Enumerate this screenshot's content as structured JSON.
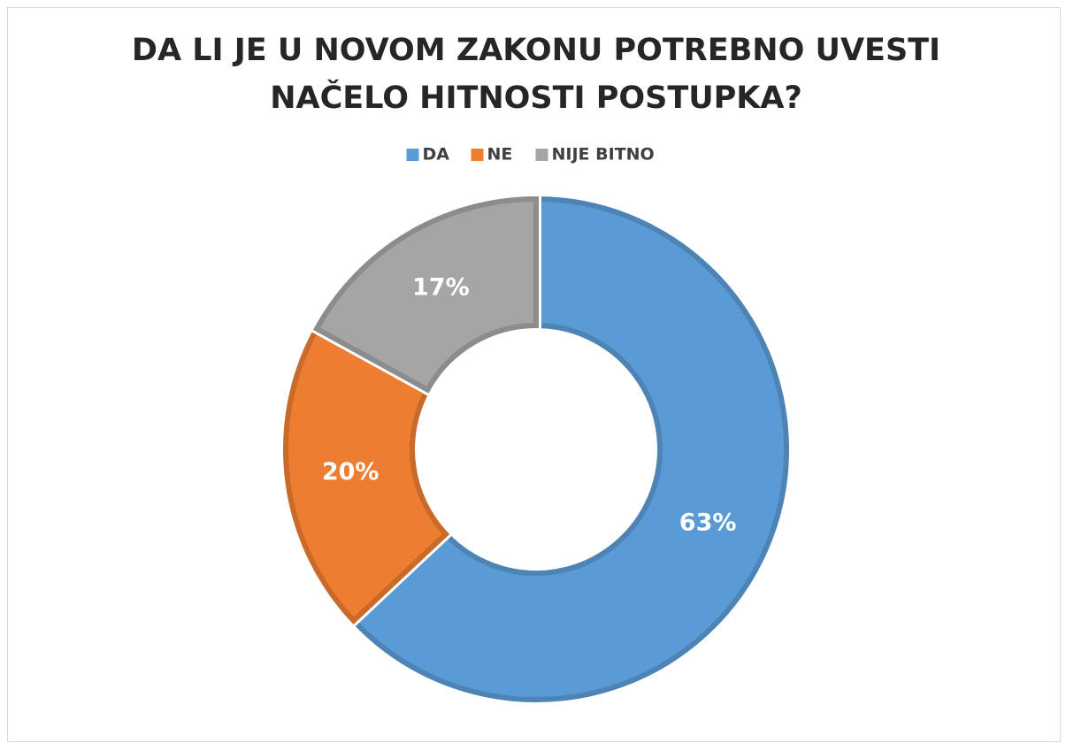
{
  "chart_data": {
    "type": "donut",
    "title": [
      "DA LI JE U NOVOM ZAKONU POTREBNO UVESTI",
      "NAČELO HITNOSTI POSTUPKA?"
    ],
    "categories": [
      "DA",
      "NE",
      "NIJE BITNO"
    ],
    "values": [
      63,
      20,
      17
    ],
    "value_labels": [
      "63%",
      "20%",
      "17%"
    ],
    "colors": [
      "#5b9bd5",
      "#ed7d31",
      "#a5a5a5"
    ],
    "legend": "top"
  }
}
